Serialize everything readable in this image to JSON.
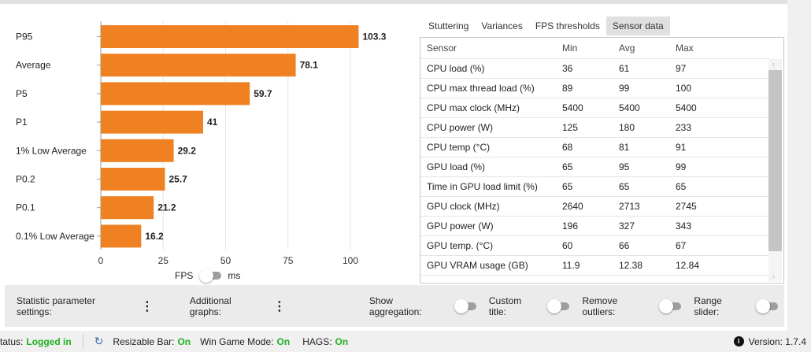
{
  "chart_data": {
    "type": "bar",
    "orientation": "horizontal",
    "categories": [
      "P95",
      "Average",
      "P5",
      "P1",
      "1% Low Average",
      "P0.2",
      "P0.1",
      "0.1% Low Average"
    ],
    "values": [
      103.3,
      78.1,
      59.7,
      41,
      29.2,
      25.7,
      21.2,
      16.2
    ],
    "xticks": [
      0,
      25,
      50,
      75,
      100
    ],
    "xlim": [
      0,
      110
    ],
    "grid": "vertical",
    "color": "#f08122"
  },
  "unit_toggle": {
    "left": "FPS",
    "right": "ms"
  },
  "tabs": [
    {
      "label": "Stuttering"
    },
    {
      "label": "Variances"
    },
    {
      "label": "FPS thresholds"
    },
    {
      "label": "Sensor data",
      "active": true
    }
  ],
  "table": {
    "headers": [
      "Sensor",
      "Min",
      "Avg",
      "Max"
    ],
    "rows": [
      [
        "CPU load (%)",
        "36",
        "61",
        "97"
      ],
      [
        "CPU max thread load (%)",
        "89",
        "99",
        "100"
      ],
      [
        "CPU max clock (MHz)",
        "5400",
        "5400",
        "5400"
      ],
      [
        "CPU power (W)",
        "125",
        "180",
        "233"
      ],
      [
        "CPU temp (°C)",
        "68",
        "81",
        "91"
      ],
      [
        "GPU load (%)",
        "65",
        "95",
        "99"
      ],
      [
        "Time in GPU load limit (%)",
        "65",
        "65",
        "65"
      ],
      [
        "GPU clock (MHz)",
        "2640",
        "2713",
        "2745"
      ],
      [
        "GPU power (W)",
        "196",
        "327",
        "343"
      ],
      [
        "GPU temp. (°C)",
        "60",
        "66",
        "67"
      ],
      [
        "GPU VRAM usage (GB)",
        "11.9",
        "12.38",
        "12.84"
      ]
    ]
  },
  "bottom": {
    "stat_params": "Statistic parameter settings:",
    "additional": "Additional graphs:",
    "show_agg": "Show aggregation:",
    "custom_title": "Custom title:",
    "remove_outliers": "Remove outliers:",
    "range_slider": "Range slider:"
  },
  "status": {
    "status_label": "tatus:",
    "status_value": "Logged in",
    "rebar": "Resizable Bar:",
    "rebar_v": "On",
    "wgm": "Win Game Mode:",
    "wgm_v": "On",
    "hags": "HAGS:",
    "hags_v": "On",
    "version": "Version: 1.7.4"
  }
}
